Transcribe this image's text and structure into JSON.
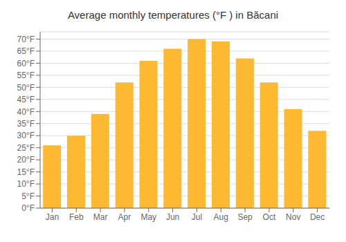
{
  "chart_data": {
    "type": "bar",
    "title": "Average monthly temperatures (°F ) in Băcani",
    "categories": [
      "Jan",
      "Feb",
      "Mar",
      "Apr",
      "May",
      "Jun",
      "Jul",
      "Aug",
      "Sep",
      "Oct",
      "Nov",
      "Dec"
    ],
    "values": [
      26,
      30,
      39,
      52,
      61,
      66,
      70,
      69,
      62,
      52,
      41,
      32
    ],
    "color": "#FDB931",
    "ylim": [
      0,
      73
    ],
    "yticks": [
      {
        "value": 0,
        "label": "0°F"
      },
      {
        "value": 5,
        "label": "5°F"
      },
      {
        "value": 10,
        "label": "10°F"
      },
      {
        "value": 15,
        "label": "15°F"
      },
      {
        "value": 20,
        "label": "20°F"
      },
      {
        "value": 25,
        "label": "25°F"
      },
      {
        "value": 30,
        "label": "30°F"
      },
      {
        "value": 35,
        "label": "35°F"
      },
      {
        "value": 40,
        "label": "40°F"
      },
      {
        "value": 45,
        "label": "45°F"
      },
      {
        "value": 50,
        "label": "50°F"
      },
      {
        "value": 55,
        "label": "55°F"
      },
      {
        "value": 60,
        "label": "60°F"
      },
      {
        "value": 65,
        "label": "65°F"
      },
      {
        "value": 70,
        "label": "70°F"
      }
    ],
    "grid": true
  }
}
